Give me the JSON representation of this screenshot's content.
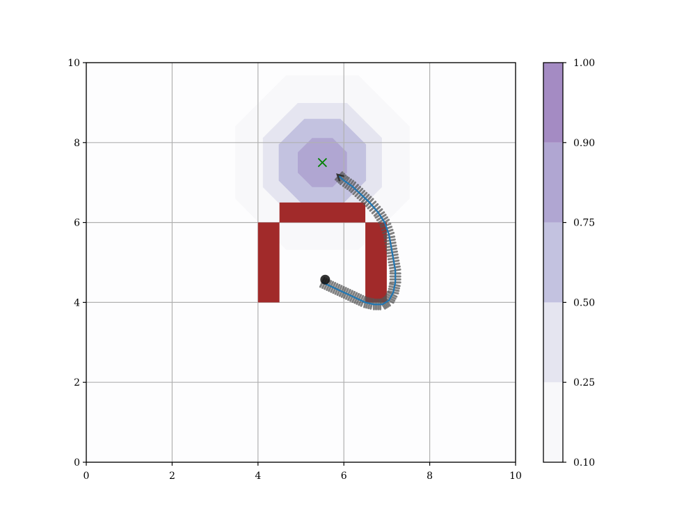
{
  "chart_data": {
    "type": "contour",
    "title": "",
    "xlabel": "",
    "ylabel": "",
    "xlim": [
      0,
      10
    ],
    "ylim": [
      0,
      10
    ],
    "xticks": [
      0,
      2,
      4,
      6,
      8,
      10
    ],
    "yticks": [
      0,
      2,
      4,
      6,
      8,
      10
    ],
    "xtick_labels": [
      "0",
      "2",
      "4",
      "6",
      "8",
      "10"
    ],
    "ytick_labels": [
      "0",
      "2",
      "4",
      "6",
      "8",
      "10"
    ],
    "grid": true,
    "goal": {
      "x": 5.5,
      "y": 7.5,
      "marker": "x",
      "color": "#008000"
    },
    "field_center": [
      5.5,
      7.5
    ],
    "contour_levels": [
      {
        "min": 0.1,
        "max": 0.25,
        "color": "#f8f8fa",
        "radius": 2.2
      },
      {
        "min": 0.25,
        "max": 0.5,
        "color": "#e5e5f0",
        "radius": 1.5
      },
      {
        "min": 0.5,
        "max": 0.75,
        "color": "#c3c2e0",
        "radius": 1.1
      },
      {
        "min": 0.75,
        "max": 0.9,
        "color": "#b0a6d2",
        "radius": 0.62
      }
    ],
    "obstacles": [
      {
        "x0": 4.0,
        "x1": 4.5,
        "y0": 4.0,
        "y1": 6.0
      },
      {
        "x0": 4.5,
        "x1": 6.5,
        "y0": 6.0,
        "y1": 6.5
      },
      {
        "x0": 6.5,
        "x1": 7.0,
        "y0": 4.0,
        "y1": 6.0
      }
    ],
    "obstacle_color": "#a12a2a",
    "trajectory": {
      "color": "#1f77b4",
      "points": [
        [
          5.5,
          4.5
        ],
        [
          5.7,
          4.4
        ],
        [
          5.9,
          4.3
        ],
        [
          6.1,
          4.2
        ],
        [
          6.3,
          4.1
        ],
        [
          6.5,
          4.0
        ],
        [
          6.7,
          3.95
        ],
        [
          6.9,
          3.95
        ],
        [
          7.05,
          4.05
        ],
        [
          7.15,
          4.25
        ],
        [
          7.2,
          4.5
        ],
        [
          7.2,
          4.8
        ],
        [
          7.15,
          5.1
        ],
        [
          7.1,
          5.4
        ],
        [
          7.05,
          5.7
        ],
        [
          6.95,
          6.0
        ],
        [
          6.8,
          6.25
        ],
        [
          6.6,
          6.5
        ],
        [
          6.4,
          6.7
        ],
        [
          6.2,
          6.9
        ],
        [
          6.0,
          7.05
        ],
        [
          5.85,
          7.2
        ]
      ]
    },
    "colorbar": {
      "ticks": [
        "0.10",
        "0.25",
        "0.50",
        "0.75",
        "0.90",
        "1.00"
      ],
      "bands": [
        {
          "from": 0.1,
          "to": 0.25,
          "color": "#f8f8fa"
        },
        {
          "from": 0.25,
          "to": 0.5,
          "color": "#e5e5f0"
        },
        {
          "from": 0.5,
          "to": 0.75,
          "color": "#c3c2e0"
        },
        {
          "from": 0.75,
          "to": 0.9,
          "color": "#b0a6d2"
        },
        {
          "from": 0.9,
          "to": 1.0,
          "color": "#a48bc3"
        }
      ]
    }
  }
}
